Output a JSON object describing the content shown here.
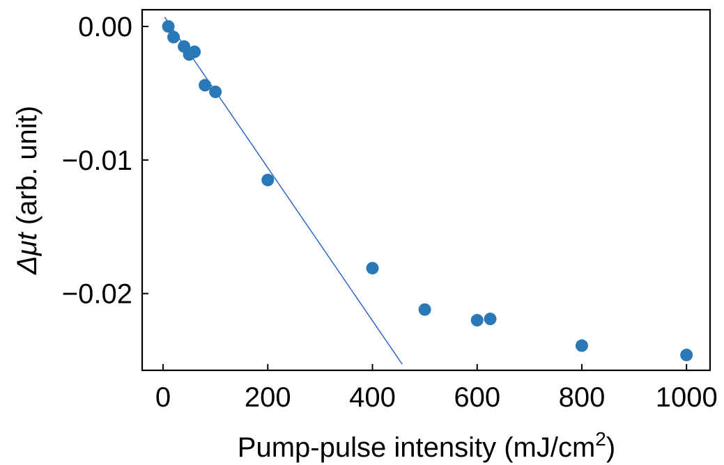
{
  "chart_data": {
    "type": "scatter",
    "xlabel": "Pump-pulse intensity (mJ/cm",
    "xlabel_superscript": "2",
    "xlabel_close": ")",
    "ylabel_symbol": "Δμt",
    "ylabel_units": " (arb. unit)",
    "xlim": [
      -40,
      1045
    ],
    "ylim": [
      -0.02575,
      0.00125
    ],
    "xticks": [
      0,
      200,
      400,
      600,
      800,
      1000
    ],
    "xtick_labels": [
      "0",
      "200",
      "400",
      "600",
      "800",
      "1000"
    ],
    "yticks": [
      0.0,
      -0.01,
      -0.02
    ],
    "ytick_labels": [
      "0.00",
      "−0.01",
      "−0.02"
    ],
    "series": [
      {
        "type": "scatter",
        "color": "#2a78b5",
        "x": [
          10,
          20,
          40,
          50,
          60,
          80,
          100,
          200,
          400,
          500,
          600,
          625,
          800,
          1000
        ],
        "y": [
          0.0,
          -0.0008,
          -0.0015,
          -0.0021,
          -0.0019,
          -0.0044,
          -0.0049,
          -0.0115,
          -0.0181,
          -0.0212,
          -0.022,
          -0.0219,
          -0.0239,
          -0.0246
        ]
      },
      {
        "type": "line",
        "color": "#1f5fc2",
        "x": [
          3,
          457
        ],
        "y": [
          0.0007,
          -0.0253
        ]
      }
    ],
    "grid": false,
    "ticks_direction": "in"
  }
}
